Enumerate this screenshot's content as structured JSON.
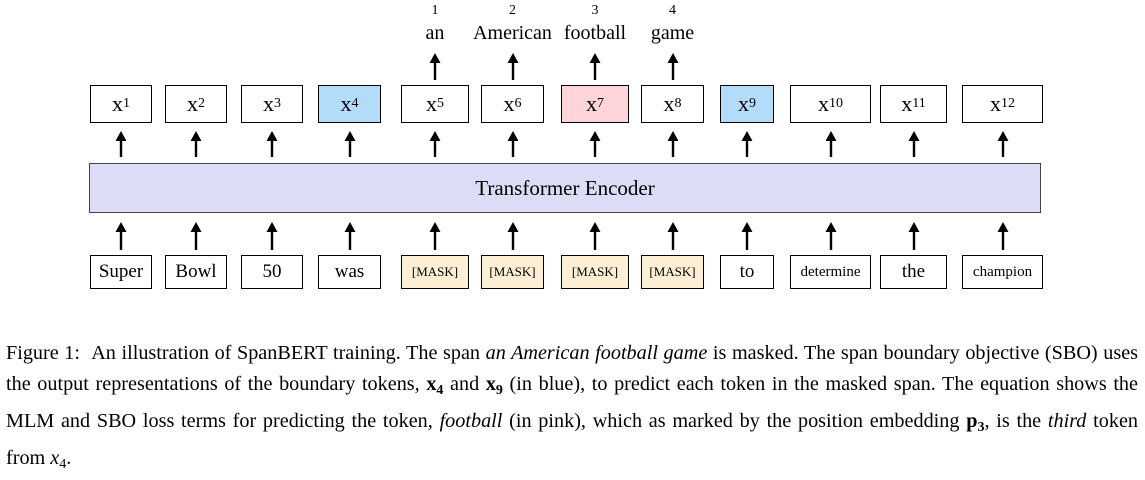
{
  "diagram": {
    "encoder_label": "Transformer Encoder",
    "outputs": [
      {
        "base": "x",
        "sub": "1",
        "fill": "#ffffff"
      },
      {
        "base": "x",
        "sub": "2",
        "fill": "#ffffff"
      },
      {
        "base": "x",
        "sub": "3",
        "fill": "#ffffff"
      },
      {
        "base": "x",
        "sub": "4",
        "fill": "#b3dcfa"
      },
      {
        "base": "x",
        "sub": "5",
        "fill": "#ffffff"
      },
      {
        "base": "x",
        "sub": "6",
        "fill": "#ffffff"
      },
      {
        "base": "x",
        "sub": "7",
        "fill": "#fdd4d8"
      },
      {
        "base": "x",
        "sub": "8",
        "fill": "#ffffff"
      },
      {
        "base": "x",
        "sub": "9",
        "fill": "#b3dcfa"
      },
      {
        "base": "x",
        "sub": "10",
        "fill": "#ffffff"
      },
      {
        "base": "x",
        "sub": "11",
        "fill": "#ffffff"
      },
      {
        "base": "x",
        "sub": "12",
        "fill": "#ffffff"
      }
    ],
    "inputs": [
      {
        "text": "Super",
        "fill": "#ffffff"
      },
      {
        "text": "Bowl",
        "fill": "#ffffff"
      },
      {
        "text": "50",
        "fill": "#ffffff"
      },
      {
        "text": "was",
        "fill": "#ffffff"
      },
      {
        "text": "[MASK]",
        "fill": "#fdefd4"
      },
      {
        "text": "[MASK]",
        "fill": "#fdefd4"
      },
      {
        "text": "[MASK]",
        "fill": "#fdefd4"
      },
      {
        "text": "[MASK]",
        "fill": "#fdefd4"
      },
      {
        "text": "to",
        "fill": "#ffffff"
      },
      {
        "text": "determine",
        "fill": "#ffffff"
      },
      {
        "text": "the",
        "fill": "#ffffff"
      },
      {
        "text": "champion",
        "fill": "#ffffff"
      }
    ],
    "predictions": [
      {
        "position": "1",
        "word": "an"
      },
      {
        "position": "2",
        "word": "American"
      },
      {
        "position": "3",
        "word": "football"
      },
      {
        "position": "4",
        "word": "game"
      }
    ]
  },
  "caption": {
    "figure_label": "Figure 1:",
    "t1": "An illustration of SpanBERT training.  The span ",
    "span_italic": "an American football game",
    "t2": " is masked.  The span boundary objective (SBO) uses the output representations of the boundary tokens, ",
    "x_base": "x",
    "sub_4": "4",
    "t3": " and ",
    "sub_9": "9",
    "t4": " (in blue), to predict each token in the masked span. The equation shows the MLM and SBO loss terms for predicting the token, ",
    "football_italic": "football",
    "t5": " (in pink), which as marked by the position embedding ",
    "p_base": "p",
    "sub_3": "3",
    "t6": ", is the ",
    "third_italic": "third",
    "t7": " token from ",
    "x4_italic": "x",
    "t8": "."
  }
}
